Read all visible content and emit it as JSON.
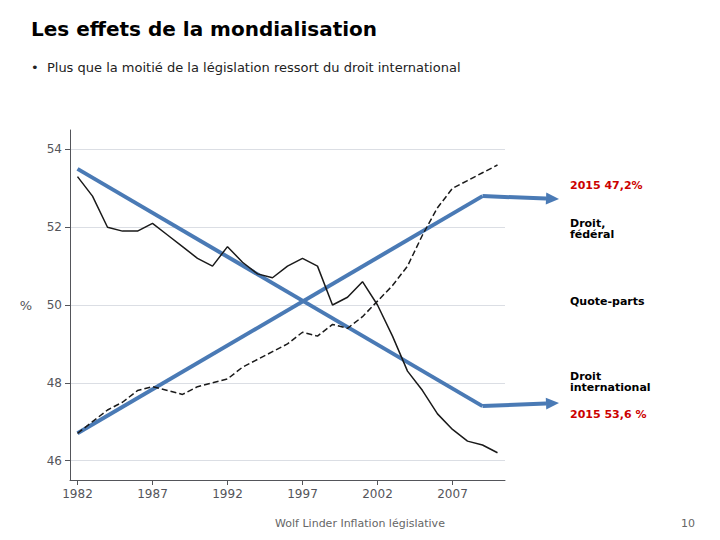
{
  "chart_data": {
    "type": "line",
    "title": "Les effets de la mondialisation",
    "subtitle": "•  Plus que la moitié de la législation ressort du droit international",
    "ylabel": "%",
    "x": [
      1982,
      1983,
      1984,
      1985,
      1986,
      1987,
      1988,
      1989,
      1990,
      1991,
      1992,
      1993,
      1994,
      1995,
      1996,
      1997,
      1998,
      1999,
      2000,
      2001,
      2002,
      2003,
      2004,
      2005,
      2006,
      2007,
      2008,
      2009,
      2010
    ],
    "series": [
      {
        "color": "#1a1a1a",
        "line_style": "solid",
        "values": [
          53.3,
          52.8,
          52.0,
          51.9,
          51.9,
          52.1,
          51.8,
          51.5,
          51.2,
          51.0,
          51.5,
          51.1,
          50.8,
          50.7,
          51.0,
          51.2,
          51.0,
          50.0,
          50.2,
          50.6,
          50.0,
          49.2,
          48.3,
          47.8,
          47.2,
          46.8,
          46.5,
          46.4,
          46.2
        ]
      },
      {
        "color": "#1a1a1a",
        "line_style": "dashed",
        "values": [
          46.7,
          47.0,
          47.3,
          47.5,
          47.8,
          47.9,
          47.8,
          47.7,
          47.9,
          48.0,
          48.1,
          48.4,
          48.6,
          48.8,
          49.0,
          49.3,
          49.2,
          49.5,
          49.4,
          49.7,
          50.1,
          50.5,
          51.0,
          51.8,
          52.5,
          53.0,
          53.2,
          53.4,
          53.6
        ]
      }
    ],
    "xlim": [
      1981.5,
      2010.5
    ],
    "xticks": [
      1982,
      1987,
      1992,
      1997,
      2002,
      2007
    ],
    "ylim": [
      45.5,
      54.5
    ],
    "yticks": [
      46,
      48,
      50,
      52,
      54
    ],
    "grid": true,
    "arrows": [
      {
        "start": [
          1982,
          53.5
        ],
        "end": [
          2009,
          47.4
        ],
        "color": "#4a7ab5",
        "label": "Droit\ninternational",
        "value_label": "2015 53,6 %"
      },
      {
        "start": [
          1982,
          46.7
        ],
        "end": [
          2009,
          52.8
        ],
        "color": "#4a7ab5",
        "label": "Droit,\nfédéral",
        "value_label": "2015 47,2%"
      }
    ],
    "middle_label": "Quote-parts",
    "highlight_color": "#cc0000",
    "source": "Wolf Linder Inflation législative",
    "page_number": "10"
  }
}
